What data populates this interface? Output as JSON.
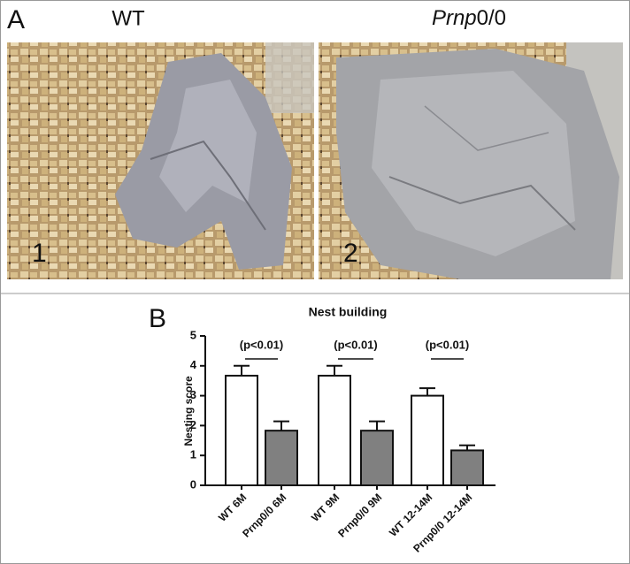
{
  "panel_a": {
    "label": "A",
    "left_title": "WT",
    "right_title_italic": "Prnp",
    "right_title_rest": "0/0",
    "photo_labels": [
      "1",
      "2"
    ]
  },
  "panel_b_label": "B",
  "chart_data": {
    "type": "bar",
    "title": "Nest building",
    "y_label": "Nesting score",
    "categories": [
      "WT 6M",
      "Prnp0/0 6M",
      "WT 9M",
      "Prnp0/0 9M",
      "WT 12-14M",
      "Prnp0/0 12-14M"
    ],
    "values": [
      3.67,
      1.83,
      3.67,
      1.83,
      3.0,
      1.17
    ],
    "errors": [
      0.33,
      0.31,
      0.33,
      0.31,
      0.25,
      0.17
    ],
    "colors": [
      "#ffffff",
      "#808080",
      "#ffffff",
      "#808080",
      "#ffffff",
      "#808080"
    ],
    "ylim": [
      0,
      5
    ],
    "yticks": [
      0,
      1,
      2,
      3,
      4,
      5
    ],
    "annotations": [
      "(p<0.01)",
      "(p<0.01)",
      "(p<0.01)"
    ]
  }
}
